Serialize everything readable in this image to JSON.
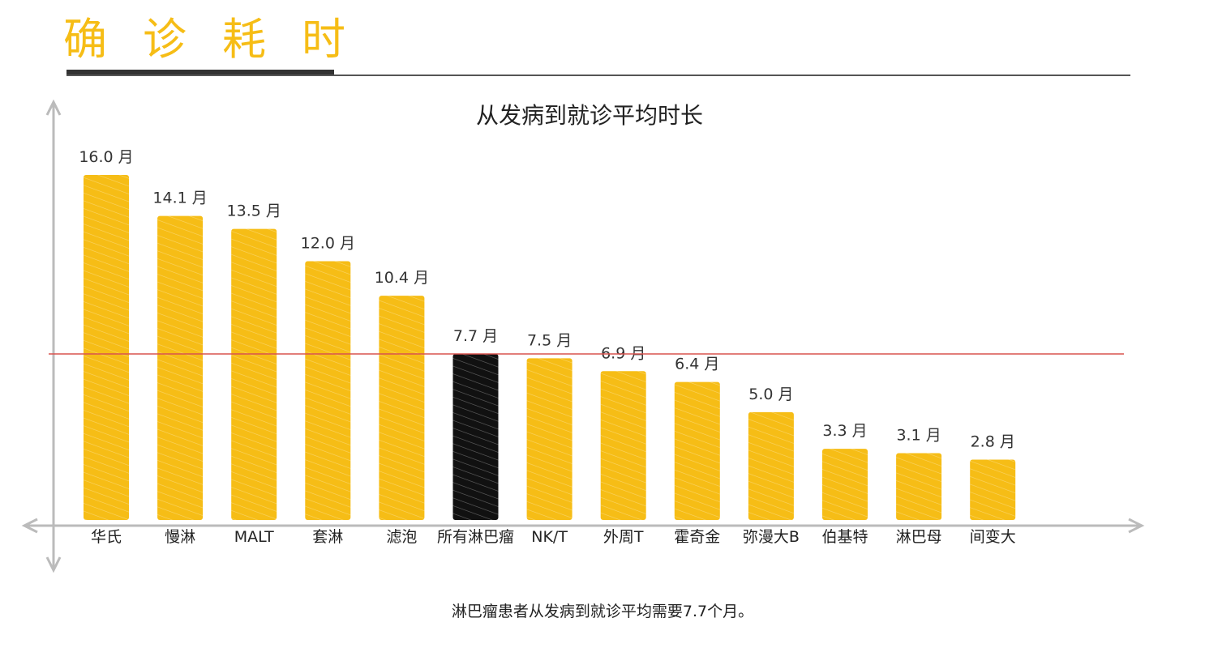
{
  "header": {
    "title": "确诊耗时"
  },
  "colors": {
    "bar": "#f6bd16",
    "highlight_bar": "#111111",
    "reference_line": "#d9534f",
    "axis": "#bbbbbb",
    "title": "#f6bd16"
  },
  "chart_data": {
    "type": "bar",
    "title": "从发病到就诊平均时长",
    "categories": [
      "华氏",
      "慢淋",
      "MALT",
      "套淋",
      "滤泡",
      "所有淋巴瘤",
      "NK/T",
      "外周T",
      "霍奇金",
      "弥漫大B",
      "伯基特",
      "淋巴母",
      "间变大"
    ],
    "values": [
      16.0,
      14.1,
      13.5,
      12.0,
      10.4,
      7.7,
      7.5,
      6.9,
      6.4,
      5.0,
      3.3,
      3.1,
      2.8
    ],
    "value_labels": [
      "16.0 月",
      "14.1 月",
      "13.5 月",
      "12.0 月",
      "10.4 月",
      "7.7 月",
      "7.5 月",
      "6.9 月",
      "6.4 月",
      "5.0 月",
      "3.3 月",
      "3.1 月",
      "2.8 月"
    ],
    "highlight_index": 5,
    "reference_value": 7.7,
    "xlabel": "",
    "ylabel": "",
    "ylim": [
      0,
      16.0
    ],
    "legend": "none",
    "grid": false
  },
  "caption": "淋巴瘤患者从发病到就诊平均需要7.7个月。"
}
